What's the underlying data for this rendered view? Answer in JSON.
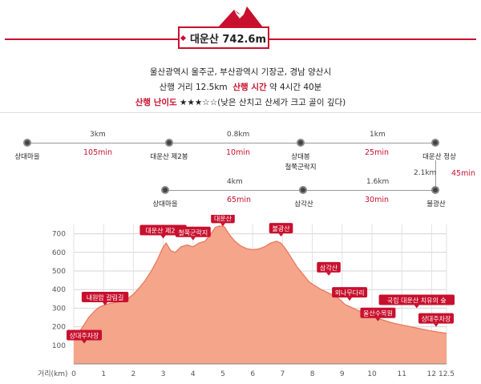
{
  "header": {
    "title": "대운산 742.6m",
    "mountain_icon": "mountain-peak-icon",
    "accent_color": "#c8102e"
  },
  "info": {
    "location": "울산광역시 울주군, 부산광역시 기장군, 경남 양산시",
    "distance_label": "산행 거리 12.5km",
    "time_label": "산행 시간",
    "time_value": "약 4시간 40분",
    "difficulty_label": "산행 난이도",
    "difficulty_stars": "★★★☆☆",
    "difficulty_note": "(낮은 산치고 산세가 크고 골이 깊다)"
  },
  "route_top": {
    "stops": [
      "상대마을",
      "대운산 제2봉",
      "상대봉",
      "대운산 정상"
    ],
    "stop_sub": "철쭉군락지",
    "distances": [
      "3km",
      "0.8km",
      "1km"
    ],
    "times": [
      "105min",
      "10min",
      "25min"
    ]
  },
  "route_side": {
    "distance": "2.1km",
    "time": "45min"
  },
  "route_bottom": {
    "stops": [
      "상대마을",
      "삼각산",
      "불광산"
    ],
    "distances": [
      "4km",
      "1.6km"
    ],
    "times": [
      "65min",
      "30min"
    ]
  },
  "chart_data": {
    "type": "area",
    "xlabel": "거리(km)",
    "xlim": [
      0,
      12.5
    ],
    "ylim": [
      0,
      750
    ],
    "x_ticks": [
      "0",
      "1",
      "2",
      "3",
      "4",
      "5",
      "6",
      "7",
      "8",
      "9",
      "10",
      "11",
      "12",
      "12.5"
    ],
    "y_ticks": [
      "100",
      "200",
      "300",
      "400",
      "500",
      "600",
      "700"
    ],
    "fill_color": "#f4a58a",
    "stroke_color": "#e8765a",
    "points": [
      [
        0,
        150
      ],
      [
        0.15,
        165
      ],
      [
        0.3,
        200
      ],
      [
        0.5,
        250
      ],
      [
        0.7,
        285
      ],
      [
        0.85,
        305
      ],
      [
        1,
        315
      ],
      [
        1.2,
        325
      ],
      [
        1.4,
        330
      ],
      [
        1.6,
        335
      ],
      [
        1.8,
        350
      ],
      [
        2,
        375
      ],
      [
        2.2,
        410
      ],
      [
        2.4,
        450
      ],
      [
        2.6,
        500
      ],
      [
        2.8,
        560
      ],
      [
        3.0,
        630
      ],
      [
        3.1,
        650
      ],
      [
        3.25,
        610
      ],
      [
        3.4,
        600
      ],
      [
        3.6,
        630
      ],
      [
        3.8,
        640
      ],
      [
        4.0,
        630
      ],
      [
        4.2,
        650
      ],
      [
        4.4,
        660
      ],
      [
        4.6,
        700
      ],
      [
        4.75,
        735
      ],
      [
        4.9,
        742
      ],
      [
        5.05,
        738
      ],
      [
        5.2,
        700
      ],
      [
        5.4,
        660
      ],
      [
        5.6,
        635
      ],
      [
        5.8,
        620
      ],
      [
        6.0,
        615
      ],
      [
        6.2,
        618
      ],
      [
        6.4,
        630
      ],
      [
        6.6,
        650
      ],
      [
        6.8,
        660
      ],
      [
        6.95,
        650
      ],
      [
        7.1,
        620
      ],
      [
        7.3,
        570
      ],
      [
        7.5,
        520
      ],
      [
        7.7,
        480
      ],
      [
        7.9,
        440
      ],
      [
        8.1,
        420
      ],
      [
        8.3,
        400
      ],
      [
        8.5,
        385
      ],
      [
        8.7,
        370
      ],
      [
        8.9,
        350
      ],
      [
        9.1,
        320
      ],
      [
        9.3,
        305
      ],
      [
        9.5,
        290
      ],
      [
        9.8,
        270
      ],
      [
        10.1,
        250
      ],
      [
        10.4,
        235
      ],
      [
        10.7,
        220
      ],
      [
        11.0,
        210
      ],
      [
        11.3,
        200
      ],
      [
        11.6,
        190
      ],
      [
        11.9,
        180
      ],
      [
        12.2,
        172
      ],
      [
        12.5,
        165
      ]
    ],
    "annotations": [
      {
        "text": "상대주차장",
        "x": 0.35,
        "y": 155
      },
      {
        "text": "내원암 갈림길",
        "x": 1.05,
        "y": 360
      },
      {
        "text": "대운산 제2봉",
        "x": 3.0,
        "y": 720
      },
      {
        "text": "철쭉군락지",
        "x": 4.0,
        "y": 710
      },
      {
        "text": "대운산",
        "x": 5.0,
        "y": 785
      },
      {
        "text": "불광산",
        "x": 6.95,
        "y": 730
      },
      {
        "text": "삼각산",
        "x": 8.55,
        "y": 520
      },
      {
        "text": "외나무다리",
        "x": 9.25,
        "y": 385
      },
      {
        "text": "울산수목원",
        "x": 10.2,
        "y": 275
      },
      {
        "text": "국립 대운산 치유의 숲",
        "x": 11.5,
        "y": 345
      },
      {
        "text": "상대주차장",
        "x": 12.15,
        "y": 245
      }
    ]
  }
}
